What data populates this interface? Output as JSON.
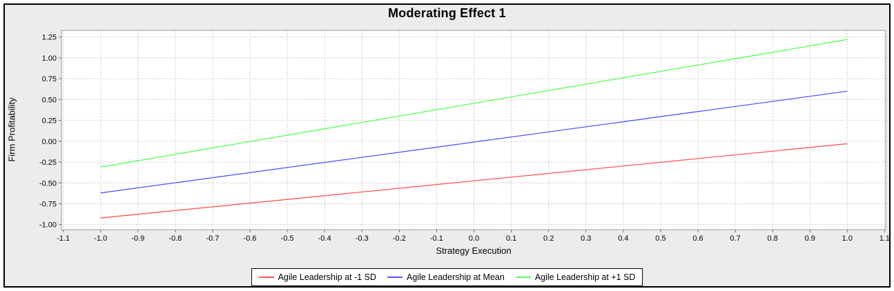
{
  "title": "Moderating Effect 1",
  "colors": {
    "frame_border": "#000000",
    "background": "#ececec",
    "plot_background": "#ffffff",
    "gridline": "#cccccc",
    "plot_border": "#9a9a9a",
    "tick_mark": "#6e6e6e",
    "text": "#000000",
    "legend_border": "#000000",
    "legend_background": "#ffffff"
  },
  "chart_data": {
    "type": "line",
    "title": "Moderating Effect 1",
    "xlabel": "Strategy Execution",
    "ylabel": "Firm Profitability",
    "xlim": [
      -1.105,
      1.103
    ],
    "ylim": [
      -1.06,
      1.33
    ],
    "grid": true,
    "gridline_style": "dashed",
    "legend_position": "bottom",
    "x_ticks": [
      "-1.1",
      "-1.0",
      "-0.9",
      "-0.8",
      "-0.7",
      "-0.6",
      "-0.5",
      "-0.4",
      "-0.3",
      "-0.2",
      "-0.1",
      "0.0",
      "0.1",
      "0.2",
      "0.3",
      "0.4",
      "0.5",
      "0.6",
      "0.7",
      "0.8",
      "0.9",
      "1.0",
      "1.1"
    ],
    "y_ticks": [
      "-1.00",
      "-0.75",
      "-0.50",
      "-0.25",
      "0.00",
      "0.25",
      "0.50",
      "0.75",
      "1.00",
      "1.25"
    ],
    "series": [
      {
        "name": "Agile Leadership at -1 SD",
        "color": "#ff5555",
        "x": [
          -1.0,
          1.0
        ],
        "y": [
          -0.92,
          -0.03
        ]
      },
      {
        "name": "Agile Leadership at Mean",
        "color": "#5555ff",
        "x": [
          -1.0,
          1.0
        ],
        "y": [
          -0.62,
          0.6
        ]
      },
      {
        "name": "Agile Leadership at +1 SD",
        "color": "#55ff55",
        "x": [
          -1.0,
          1.0
        ],
        "y": [
          -0.31,
          1.22
        ]
      }
    ]
  }
}
